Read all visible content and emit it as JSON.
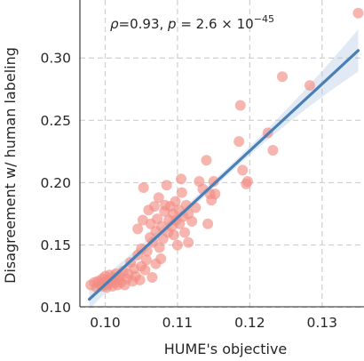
{
  "chart_data": {
    "type": "scatter",
    "xlabel": "HUME's objective",
    "ylabel": "Disagreement w/ human labeling",
    "xlim": [
      0.0965,
      0.1358
    ],
    "ylim": [
      0.1005,
      0.3465
    ],
    "xticks": [
      0.1,
      0.11,
      0.12,
      0.13
    ],
    "xtick_labels": [
      "0.10",
      "0.11",
      "0.12",
      "0.13"
    ],
    "yticks": [
      0.1,
      0.15,
      0.2,
      0.25,
      0.3
    ],
    "ytick_labels": [
      "0.10",
      "0.15",
      "0.20",
      "0.25",
      "0.30"
    ],
    "grid": true,
    "annotation": {
      "rho_symbol": "ρ",
      "rho_text": "=0.93, ",
      "p_symbol": "p",
      "p_text": " = 2.6 × 10",
      "p_exponent": "−45"
    },
    "point_color": "#f28e84",
    "line_color": "#4a7fb5",
    "band_color": "#a9c4e0",
    "regression": {
      "x0": 0.0978,
      "y0": 0.1065,
      "x1": 0.135,
      "y1": 0.306
    },
    "band_halfwidth": {
      "at_x_start": 0.008,
      "at_x_center": 0.003,
      "at_x_end": 0.017
    },
    "points": [
      [
        0.098,
        0.118
      ],
      [
        0.0985,
        0.12
      ],
      [
        0.0988,
        0.116
      ],
      [
        0.099,
        0.121
      ],
      [
        0.0992,
        0.119
      ],
      [
        0.0995,
        0.117
      ],
      [
        0.0996,
        0.123
      ],
      [
        0.0998,
        0.12
      ],
      [
        0.1,
        0.118
      ],
      [
        0.1,
        0.125
      ],
      [
        0.1002,
        0.116
      ],
      [
        0.1003,
        0.122
      ],
      [
        0.1005,
        0.119
      ],
      [
        0.1006,
        0.126
      ],
      [
        0.1008,
        0.121
      ],
      [
        0.101,
        0.117
      ],
      [
        0.1012,
        0.124
      ],
      [
        0.1013,
        0.12
      ],
      [
        0.1015,
        0.127
      ],
      [
        0.1017,
        0.118
      ],
      [
        0.1018,
        0.122
      ],
      [
        0.102,
        0.125
      ],
      [
        0.1022,
        0.12
      ],
      [
        0.1025,
        0.129
      ],
      [
        0.1027,
        0.118
      ],
      [
        0.103,
        0.123
      ],
      [
        0.1032,
        0.127
      ],
      [
        0.1035,
        0.136
      ],
      [
        0.1038,
        0.121
      ],
      [
        0.104,
        0.131
      ],
      [
        0.1042,
        0.125
      ],
      [
        0.1045,
        0.142
      ],
      [
        0.1045,
        0.163
      ],
      [
        0.1048,
        0.122
      ],
      [
        0.105,
        0.133
      ],
      [
        0.105,
        0.147
      ],
      [
        0.1052,
        0.17
      ],
      [
        0.1053,
        0.196
      ],
      [
        0.1055,
        0.13
      ],
      [
        0.1057,
        0.138
      ],
      [
        0.1058,
        0.145
      ],
      [
        0.106,
        0.178
      ],
      [
        0.1062,
        0.156
      ],
      [
        0.1063,
        0.167
      ],
      [
        0.1065,
        0.124
      ],
      [
        0.1066,
        0.152
      ],
      [
        0.1068,
        0.181
      ],
      [
        0.107,
        0.135
      ],
      [
        0.107,
        0.161
      ],
      [
        0.1072,
        0.171
      ],
      [
        0.1074,
        0.188
      ],
      [
        0.1075,
        0.148
      ],
      [
        0.1077,
        0.139
      ],
      [
        0.1078,
        0.165
      ],
      [
        0.108,
        0.155
      ],
      [
        0.1082,
        0.177
      ],
      [
        0.1083,
        0.182
      ],
      [
        0.1085,
        0.198
      ],
      [
        0.1087,
        0.16
      ],
      [
        0.1088,
        0.17
      ],
      [
        0.109,
        0.181
      ],
      [
        0.1092,
        0.165
      ],
      [
        0.1094,
        0.175
      ],
      [
        0.1095,
        0.158
      ],
      [
        0.1097,
        0.185
      ],
      [
        0.1098,
        0.17
      ],
      [
        0.11,
        0.15
      ],
      [
        0.1102,
        0.178
      ],
      [
        0.1103,
        0.167
      ],
      [
        0.1105,
        0.203
      ],
      [
        0.1106,
        0.192
      ],
      [
        0.1108,
        0.173
      ],
      [
        0.111,
        0.16
      ],
      [
        0.1112,
        0.182
      ],
      [
        0.1115,
        0.175
      ],
      [
        0.1115,
        0.152
      ],
      [
        0.112,
        0.169
      ],
      [
        0.1125,
        0.18
      ],
      [
        0.113,
        0.201
      ],
      [
        0.1135,
        0.195
      ],
      [
        0.114,
        0.218
      ],
      [
        0.1142,
        0.167
      ],
      [
        0.1145,
        0.191
      ],
      [
        0.1147,
        0.186
      ],
      [
        0.115,
        0.201
      ],
      [
        0.1152,
        0.191
      ],
      [
        0.1185,
        0.233
      ],
      [
        0.1187,
        0.262
      ],
      [
        0.119,
        0.21
      ],
      [
        0.1195,
        0.199
      ],
      [
        0.1197,
        0.201
      ],
      [
        0.1225,
        0.24
      ],
      [
        0.1232,
        0.226
      ],
      [
        0.1245,
        0.285
      ],
      [
        0.1283,
        0.278
      ],
      [
        0.135,
        0.336
      ]
    ]
  }
}
